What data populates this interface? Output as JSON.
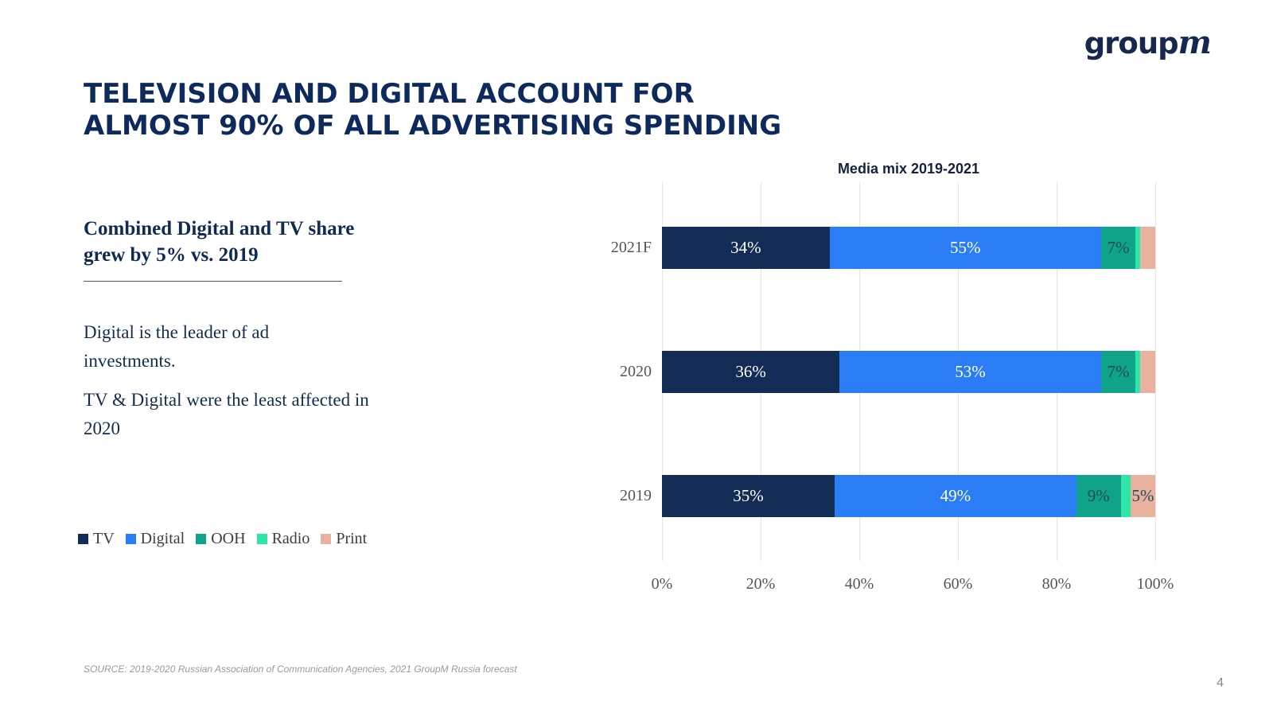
{
  "logo": {
    "part1": "group",
    "part2": "m"
  },
  "title": {
    "line1": "TELEVISION AND DIGITAL ACCOUNT FOR",
    "line2": "ALMOST 90% OF ALL ADVERTISING SPENDING"
  },
  "left_panel": {
    "heading_line1": "Combined Digital and TV share",
    "heading_line2": "grew by 5% vs. 2019",
    "body1_line1": "Digital is the leader of ad",
    "body1_line2": "investments.",
    "body2_line1": "TV & Digital were the least affected in",
    "body2_line2": "2020"
  },
  "chart_data": {
    "type": "bar",
    "orientation": "horizontal",
    "stacked": true,
    "title": "Media mix 2019-2021",
    "categories": [
      "2021F",
      "2020",
      "2019"
    ],
    "series": [
      {
        "name": "TV",
        "color": "#132c56",
        "label_color": "#ffffff",
        "values": [
          34,
          36,
          35
        ]
      },
      {
        "name": "Digital",
        "color": "#2a7df4",
        "label_color": "#ffffff",
        "values": [
          55,
          53,
          49
        ]
      },
      {
        "name": "OOH",
        "color": "#0fa38a",
        "label_color": "#214b55",
        "values": [
          7,
          7,
          9
        ]
      },
      {
        "name": "Radio",
        "color": "#2fe5a7",
        "label_color": "#214b55",
        "values": [
          1,
          1,
          2
        ]
      },
      {
        "name": "Print",
        "color": "#e9b29e",
        "label_color": "#214b55",
        "values": [
          3,
          3,
          5
        ]
      }
    ],
    "label_min_value": 5,
    "label_suffix": "%",
    "x_ticks": [
      "0%",
      "20%",
      "40%",
      "60%",
      "80%",
      "100%"
    ],
    "xlim": [
      0,
      100
    ],
    "grid": true,
    "legend_position": "bottom-left"
  },
  "footer": {
    "source": "SOURCE: 2019-2020 Russian Association of Communication Agencies, 2021 GroupM Russia forecast",
    "page_number": "4"
  }
}
